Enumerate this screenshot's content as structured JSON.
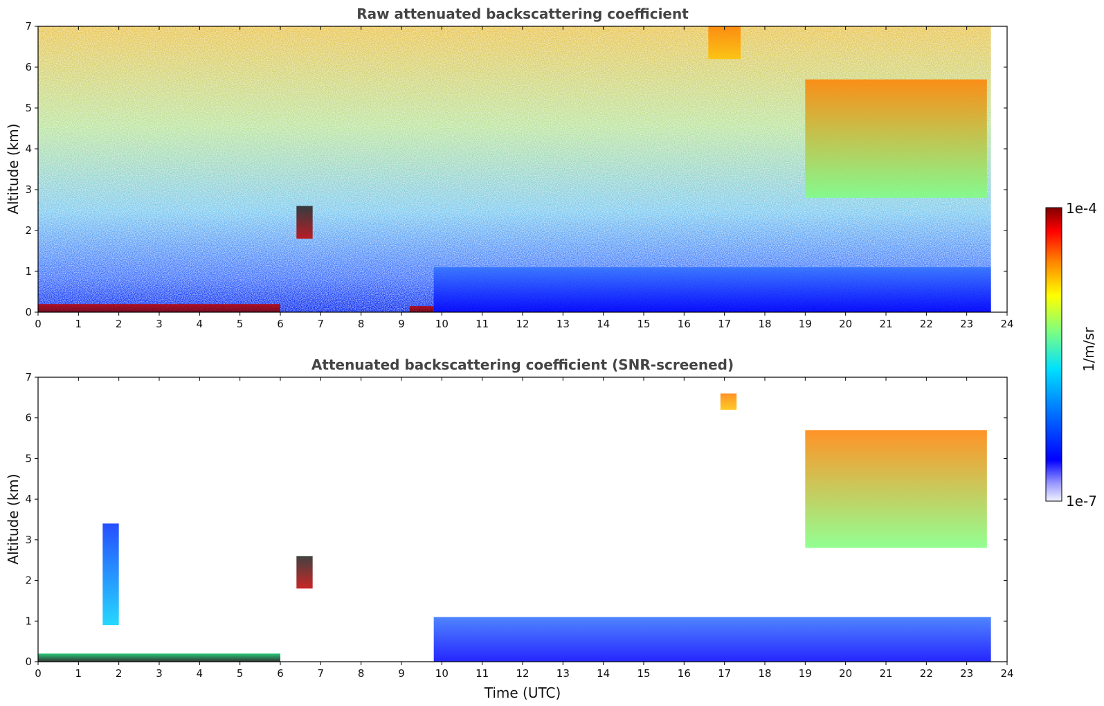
{
  "chart_data": [
    {
      "type": "heatmap",
      "title": "Raw attenuated backscattering coefficient",
      "xlabel": "",
      "ylabel": "Altitude (km)",
      "xlim": [
        0,
        24
      ],
      "ylim": [
        0,
        7
      ],
      "xticks": [
        0,
        1,
        2,
        3,
        4,
        5,
        6,
        7,
        8,
        9,
        10,
        11,
        12,
        13,
        14,
        15,
        16,
        17,
        18,
        19,
        20,
        21,
        22,
        23,
        24
      ],
      "yticks": [
        0,
        1,
        2,
        3,
        4,
        5,
        6,
        7
      ],
      "data_end_time": 23.6,
      "color_scale": "log",
      "features": [
        {
          "label": "surface layer (strong)",
          "t_start": 0.0,
          "t_end": 6.0,
          "alt_min": 0.0,
          "alt_max": 0.2
        },
        {
          "label": "surface layer (strong)",
          "t_start": 9.2,
          "t_end": 9.8,
          "alt_min": 0.0,
          "alt_max": 0.15
        },
        {
          "label": "boundary layer",
          "t_start": 9.8,
          "t_end": 23.6,
          "alt_min": 0.0,
          "alt_max": 1.1
        },
        {
          "label": "cirrus cloud",
          "t_start": 19.0,
          "t_end": 23.5,
          "alt_min": 2.8,
          "alt_max": 5.7
        },
        {
          "label": "high cloud",
          "t_start": 16.6,
          "t_end": 17.4,
          "alt_min": 6.2,
          "alt_max": 7.0
        },
        {
          "label": "isolated cloud",
          "t_start": 6.4,
          "t_end": 6.8,
          "alt_min": 1.8,
          "alt_max": 2.6
        }
      ]
    },
    {
      "type": "heatmap",
      "title": "Attenuated backscattering coefficient (SNR-screened)",
      "xlabel": "Time (UTC)",
      "ylabel": "Altitude (km)",
      "xlim": [
        0,
        24
      ],
      "ylim": [
        0,
        7
      ],
      "xticks": [
        0,
        1,
        2,
        3,
        4,
        5,
        6,
        7,
        8,
        9,
        10,
        11,
        12,
        13,
        14,
        15,
        16,
        17,
        18,
        19,
        20,
        21,
        22,
        23,
        24
      ],
      "yticks": [
        0,
        1,
        2,
        3,
        4,
        5,
        6,
        7
      ],
      "data_end_time": 23.6,
      "color_scale": "log",
      "features": [
        {
          "label": "surface layer",
          "t_start": 0.0,
          "t_end": 6.0,
          "alt_min": 0.0,
          "alt_max": 0.2
        },
        {
          "label": "aerosol plume",
          "t_start": 1.6,
          "t_end": 2.0,
          "alt_min": 0.9,
          "alt_max": 3.4
        },
        {
          "label": "boundary layer",
          "t_start": 9.8,
          "t_end": 23.6,
          "alt_min": 0.0,
          "alt_max": 1.1
        },
        {
          "label": "cirrus cloud",
          "t_start": 19.0,
          "t_end": 23.5,
          "alt_min": 2.8,
          "alt_max": 5.7
        },
        {
          "label": "high cloud",
          "t_start": 16.9,
          "t_end": 17.3,
          "alt_min": 6.2,
          "alt_max": 6.6
        },
        {
          "label": "isolated cloud",
          "t_start": 6.4,
          "t_end": 6.8,
          "alt_min": 1.8,
          "alt_max": 2.6
        }
      ]
    }
  ],
  "colorbar": {
    "label": "1/m/sr",
    "max_label": "1e-4",
    "min_label": "1e-7",
    "colormap": "jet",
    "scale": "log"
  },
  "colors": {
    "low": "#0000ff",
    "mid": "#7fff7f",
    "high": "#7f0000"
  }
}
